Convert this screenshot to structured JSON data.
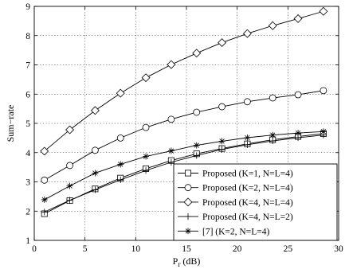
{
  "chart_data": {
    "type": "line",
    "xlabel": "P",
    "xlabel_sub": "r",
    "xlabel_suffix": " (dB)",
    "ylabel": "Sum−rate",
    "xlim": [
      0,
      30
    ],
    "ylim": [
      1,
      9
    ],
    "xticks": [
      0,
      5,
      10,
      15,
      20,
      25,
      30
    ],
    "yticks": [
      1,
      2,
      3,
      4,
      5,
      6,
      7,
      8,
      9
    ],
    "grid": true,
    "legend_position": "bottom-right",
    "x": [
      1,
      3.5,
      6,
      8.5,
      11,
      13.5,
      16,
      18.5,
      21,
      23.5,
      26,
      28.5
    ],
    "series": [
      {
        "name": "Proposed (K=1, N=L=4)",
        "marker": "square",
        "values": [
          1.91,
          2.36,
          2.76,
          3.13,
          3.45,
          3.73,
          3.96,
          4.14,
          4.3,
          4.44,
          4.55,
          4.65
        ]
      },
      {
        "name": "Proposed (K=2, N=L=4)",
        "marker": "circle",
        "values": [
          3.06,
          3.56,
          4.08,
          4.5,
          4.86,
          5.14,
          5.38,
          5.57,
          5.74,
          5.87,
          5.98,
          6.12
        ]
      },
      {
        "name": "Proposed (K=4, N=L=4)",
        "marker": "diamond",
        "values": [
          4.05,
          4.78,
          5.44,
          6.03,
          6.56,
          7.01,
          7.4,
          7.76,
          8.07,
          8.34,
          8.58,
          8.83
        ]
      },
      {
        "name": "Proposed (K=4, N=L=2)",
        "marker": "plus",
        "values": [
          1.97,
          2.37,
          2.73,
          3.07,
          3.39,
          3.67,
          3.9,
          4.11,
          4.27,
          4.4,
          4.51,
          4.6
        ]
      },
      {
        "name": "[7] (K=2, N=L=4)",
        "marker": "asterisk",
        "values": [
          2.39,
          2.86,
          3.3,
          3.6,
          3.87,
          4.06,
          4.25,
          4.39,
          4.51,
          4.6,
          4.67,
          4.72
        ]
      }
    ]
  }
}
